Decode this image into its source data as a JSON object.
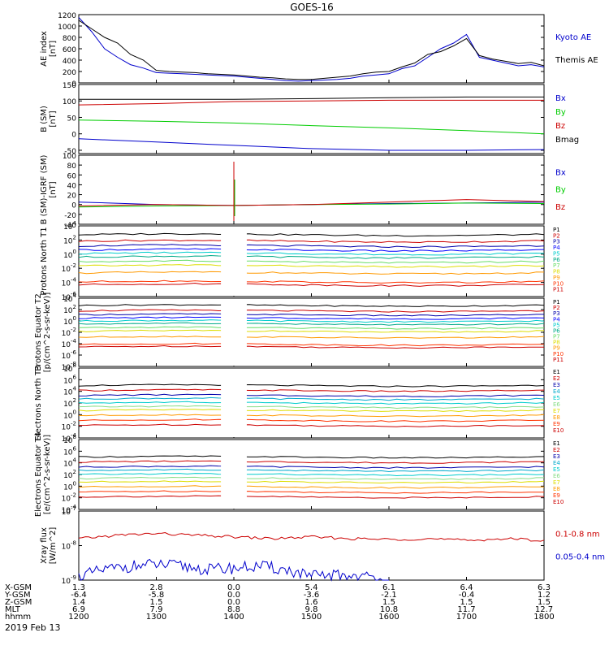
{
  "title": "GOES-16",
  "date_label": "2019 Feb 13",
  "colors": {
    "black": "#000000",
    "blue": "#0000cc",
    "green": "#00cc00",
    "red": "#cc0000",
    "navy": "#0000aa",
    "cyan": "#00cccc",
    "lightgreen": "#66dd66",
    "yellow": "#dddd00",
    "orange": "#ff9900",
    "darkred": "#cc0000"
  },
  "chart_data": [
    {
      "type": "line",
      "ylabel": "AE index [nT]",
      "ylim": [
        0,
        1200
      ],
      "yticks": [
        "0",
        "200",
        "400",
        "600",
        "800",
        "1000",
        "1200"
      ],
      "legend": [
        {
          "name": "Kyoto AE",
          "color": "#0000cc"
        },
        {
          "name": "Themis AE",
          "color": "#000000"
        }
      ],
      "series": [
        {
          "name": "Kyoto AE",
          "color": "#0000cc",
          "x": [
            1200,
            1210,
            1220,
            1230,
            1240,
            1250,
            1300,
            1310,
            1320,
            1330,
            1340,
            1400,
            1410,
            1420,
            1430,
            1440,
            1450,
            1500,
            1510,
            1520,
            1530,
            1540,
            1550,
            1600,
            1610,
            1620,
            1630,
            1640,
            1650,
            1700,
            1710,
            1720,
            1730,
            1740,
            1750,
            1800
          ],
          "values": [
            1150,
            900,
            600,
            450,
            320,
            260,
            180,
            170,
            160,
            150,
            140,
            120,
            100,
            80,
            60,
            40,
            30,
            40,
            50,
            60,
            80,
            120,
            140,
            160,
            250,
            300,
            450,
            600,
            700,
            850,
            450,
            400,
            350,
            300,
            320,
            280
          ]
        },
        {
          "name": "Themis AE",
          "color": "#000000",
          "x": [
            1200,
            1210,
            1220,
            1230,
            1240,
            1250,
            1300,
            1310,
            1320,
            1330,
            1340,
            1400,
            1410,
            1420,
            1430,
            1440,
            1450,
            1500,
            1510,
            1520,
            1530,
            1540,
            1550,
            1600,
            1610,
            1620,
            1630,
            1640,
            1650,
            1700,
            1710,
            1720,
            1730,
            1740,
            1750,
            1800
          ],
          "values": [
            1100,
            950,
            800,
            700,
            500,
            400,
            220,
            200,
            190,
            180,
            160,
            140,
            120,
            100,
            90,
            70,
            60,
            60,
            80,
            100,
            120,
            160,
            190,
            200,
            280,
            350,
            500,
            550,
            650,
            780,
            480,
            420,
            380,
            340,
            360,
            300
          ]
        }
      ]
    },
    {
      "type": "line",
      "ylabel": "B (SM) [nT]",
      "ylim": [
        -60,
        150
      ],
      "yticks": [
        "-50",
        "0",
        "50",
        "100",
        "150"
      ],
      "legend": [
        {
          "name": "Bx",
          "color": "#0000cc"
        },
        {
          "name": "By",
          "color": "#00cc00"
        },
        {
          "name": "Bz",
          "color": "#cc0000"
        },
        {
          "name": "Bmag",
          "color": "#000000"
        }
      ],
      "series": [
        {
          "name": "Bx",
          "color": "#0000cc",
          "x": [
            1200,
            1300,
            1400,
            1500,
            1600,
            1700,
            1800
          ],
          "values": [
            -15,
            -25,
            -35,
            -45,
            -50,
            -50,
            -48
          ]
        },
        {
          "name": "By",
          "color": "#00cc00",
          "x": [
            1200,
            1300,
            1400,
            1500,
            1600,
            1700,
            1800
          ],
          "values": [
            42,
            38,
            33,
            25,
            18,
            10,
            0
          ]
        },
        {
          "name": "Bz",
          "color": "#cc0000",
          "x": [
            1200,
            1300,
            1400,
            1500,
            1600,
            1700,
            1800
          ],
          "values": [
            88,
            92,
            98,
            100,
            102,
            102,
            102
          ]
        },
        {
          "name": "Bmag",
          "color": "#000000",
          "x": [
            1200,
            1300,
            1400,
            1500,
            1600,
            1700,
            1800
          ],
          "values": [
            105,
            105,
            105,
            107,
            110,
            112,
            112
          ]
        }
      ]
    },
    {
      "type": "line",
      "ylabel": "B (SM)-IGRF (SM) [nT]",
      "ylim": [
        -40,
        100
      ],
      "yticks": [
        "-40",
        "-20",
        "0",
        "20",
        "40",
        "60",
        "80",
        "100"
      ],
      "legend": [
        {
          "name": "Bx",
          "color": "#0000cc"
        },
        {
          "name": "By",
          "color": "#00cc00"
        },
        {
          "name": "Bz",
          "color": "#cc0000"
        }
      ],
      "series": [
        {
          "name": "Bx",
          "color": "#0000cc",
          "x": [
            1200,
            1300,
            1400,
            1500,
            1600,
            1700,
            1800
          ],
          "values": [
            5,
            0,
            -2,
            0,
            2,
            3,
            5
          ]
        },
        {
          "name": "By",
          "color": "#00cc00",
          "x": [
            1200,
            1300,
            1400,
            1500,
            1600,
            1700,
            1800
          ],
          "values": [
            -5,
            -3,
            -2,
            0,
            1,
            3,
            2
          ]
        },
        {
          "name": "Bz",
          "color": "#cc0000",
          "x": [
            1200,
            1300,
            1400,
            1500,
            1600,
            1700,
            1800
          ],
          "values": [
            -3,
            0,
            -2,
            0,
            5,
            10,
            6
          ]
        }
      ]
    },
    {
      "type": "line",
      "ylabel": "Protons North T1",
      "log_y": true,
      "yticks": [
        "10^4",
        "10^2",
        "10^0",
        "10^-2",
        "10^-4",
        "10^-6"
      ],
      "legend": [
        "P1",
        "P2",
        "P3",
        "P4",
        "P5",
        "P6",
        "P7",
        "P8",
        "P9",
        "P10",
        "P11"
      ],
      "levels": [
        3.5,
        2.4,
        1.6,
        0.9,
        0.3,
        -0.3,
        -1.1,
        -1.8,
        -3.0,
        -4.5,
        -5.0
      ]
    },
    {
      "type": "line",
      "ylabel": "Protons Equator T2 [p/(cm^2-s-sr-keV)]",
      "log_y": true,
      "yticks": [
        "10^4",
        "10^2",
        "10^0",
        "10^-2",
        "10^-4",
        "10^-6",
        "10^-8"
      ],
      "legend": [
        "P1",
        "P2",
        "P3",
        "P4",
        "P5",
        "P6",
        "P7",
        "P8",
        "P9",
        "P10",
        "P11"
      ],
      "levels": [
        3.5,
        2.4,
        1.6,
        0.9,
        0.3,
        -0.3,
        -1.1,
        -1.8,
        -3.0,
        -4.5,
        -5.0
      ]
    },
    {
      "type": "line",
      "ylabel": "Electrons North T3",
      "log_y": true,
      "yticks": [
        "10^8",
        "10^6",
        "10^4",
        "10^2",
        "10^0",
        "10^-2",
        "10^-4"
      ],
      "legend": [
        "E1",
        "E2",
        "E3",
        "E4",
        "E5",
        "E6",
        "E7",
        "E8",
        "E9",
        "E10"
      ],
      "levels": [
        5.5,
        4.5,
        3.5,
        2.8,
        2.0,
        1.2,
        0.5,
        -0.5,
        -1.5,
        -2.5
      ]
    },
    {
      "type": "line",
      "ylabel": "Electrons Equator T4 [e/(cm^2-s-sr-keV)]",
      "log_y": true,
      "yticks": [
        "10^8",
        "10^6",
        "10^4",
        "10^2",
        "10^0",
        "10^-2",
        "10^-4"
      ],
      "legend": [
        "E1",
        "E2",
        "E3",
        "E4",
        "E5",
        "E6",
        "E7",
        "E8",
        "E9",
        "E10"
      ],
      "levels": [
        5.5,
        4.5,
        3.5,
        2.8,
        2.0,
        1.2,
        0.5,
        -0.5,
        -1.5,
        -2.5
      ]
    },
    {
      "type": "line",
      "ylabel": "Xray flux [W/m^2]",
      "log_y": true,
      "yticks": [
        "10^-7",
        "10^-8",
        "10^-9"
      ],
      "legend": [
        {
          "name": "0.1-0.8 nm",
          "color": "#cc0000"
        },
        {
          "name": "0.05-0.4 nm",
          "color": "#0000cc"
        }
      ],
      "series": [
        {
          "name": "0.1-0.8 nm",
          "color": "#cc0000",
          "x": [
            1200,
            1230,
            1300,
            1330,
            1400,
            1430,
            1500,
            1530,
            1600,
            1630,
            1700,
            1730,
            1800
          ],
          "values": [
            -7.8,
            -7.7,
            -7.65,
            -7.7,
            -7.75,
            -7.8,
            -7.75,
            -7.8,
            -7.82,
            -7.8,
            -7.85,
            -7.8,
            -7.85
          ]
        },
        {
          "name": "0.05-0.4 nm",
          "color": "#0000cc",
          "x": [
            1200,
            1220,
            1240,
            1300,
            1320,
            1340,
            1400,
            1420,
            1440,
            1500,
            1520,
            1540,
            1600
          ],
          "values": [
            -8.9,
            -8.7,
            -8.6,
            -8.55,
            -8.6,
            -8.7,
            -8.65,
            -8.6,
            -8.7,
            -8.9,
            -8.85,
            -8.9,
            -9.0
          ]
        }
      ]
    }
  ],
  "xaxis": {
    "row_labels": [
      "X-GSM",
      "Y-GSM",
      "Z-GSM",
      "MLT",
      "hhmm"
    ],
    "columns": [
      {
        "X-GSM": "1.3",
        "Y-GSM": "-6.4",
        "Z-GSM": "1.4",
        "MLT": "6.9",
        "hhmm": "1200"
      },
      {
        "X-GSM": "2.8",
        "Y-GSM": "-5.8",
        "Z-GSM": "1.5",
        "MLT": "7.9",
        "hhmm": "1300"
      },
      {
        "X-GSM": "0.0",
        "Y-GSM": "0.0",
        "Z-GSM": "0.0",
        "MLT": "8.8",
        "hhmm": "1400"
      },
      {
        "X-GSM": "5.4",
        "Y-GSM": "-3.6",
        "Z-GSM": "1.6",
        "MLT": "9.8",
        "hhmm": "1500"
      },
      {
        "X-GSM": "6.1",
        "Y-GSM": "-2.1",
        "Z-GSM": "1.5",
        "MLT": "10.8",
        "hhmm": "1600"
      },
      {
        "X-GSM": "6.4",
        "Y-GSM": "-0.4",
        "Z-GSM": "1.5",
        "MLT": "11.7",
        "hhmm": "1700"
      },
      {
        "X-GSM": "6.3",
        "Y-GSM": "1.2",
        "Z-GSM": "1.5",
        "MLT": "12.7",
        "hhmm": "1800"
      }
    ]
  }
}
